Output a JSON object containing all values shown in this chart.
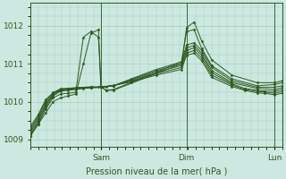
{
  "bg_color": "#cce8e0",
  "plot_bg_color": "#cce8e0",
  "grid_color": "#aaccbb",
  "line_color": "#2d5a1e",
  "marker_color": "#2d5a1e",
  "ylim": [
    1008.8,
    1012.6
  ],
  "yticks": [
    1009,
    1010,
    1011,
    1012
  ],
  "xlabel": "Pression niveau de la mer( hPa )",
  "xlabel_fontsize": 7,
  "tick_fontsize": 6.5,
  "figsize": [
    3.2,
    2.0
  ],
  "dpi": 100,
  "xtick_day_positions": [
    0.28,
    0.62,
    0.97
  ],
  "xtick_day_labels": [
    "Sam",
    "Dim",
    "Lun"
  ],
  "series": [
    {
      "x": [
        0.0,
        0.03,
        0.06,
        0.09,
        0.12,
        0.15,
        0.18,
        0.21,
        0.24,
        0.27,
        0.28,
        0.3,
        0.33,
        0.6,
        0.62,
        0.65,
        0.68,
        0.72,
        0.8,
        0.9,
        0.97,
        1.0
      ],
      "y": [
        1009.1,
        1009.4,
        1009.7,
        1010.0,
        1010.1,
        1010.15,
        1010.2,
        1011.0,
        1011.8,
        1011.9,
        1010.4,
        1010.3,
        1010.3,
        1011.0,
        1011.95,
        1012.1,
        1011.6,
        1011.1,
        1010.7,
        1010.5,
        1010.5,
        1010.55
      ]
    },
    {
      "x": [
        0.0,
        0.03,
        0.06,
        0.09,
        0.12,
        0.15,
        0.18,
        0.21,
        0.24,
        0.27,
        0.28,
        0.3,
        0.33,
        0.6,
        0.62,
        0.65,
        0.68,
        0.72,
        0.8,
        0.9,
        0.97,
        1.0
      ],
      "y": [
        1009.1,
        1009.4,
        1009.8,
        1010.1,
        1010.2,
        1010.22,
        1010.25,
        1011.7,
        1011.85,
        1011.7,
        1010.38,
        1010.3,
        1010.32,
        1011.05,
        1011.85,
        1011.9,
        1011.4,
        1010.95,
        1010.6,
        1010.42,
        1010.45,
        1010.5
      ]
    },
    {
      "x": [
        0.0,
        0.03,
        0.06,
        0.09,
        0.12,
        0.15,
        0.18,
        0.21,
        0.24,
        0.27,
        0.28,
        0.3,
        0.33,
        0.4,
        0.5,
        0.6,
        0.62,
        0.65,
        0.68,
        0.72,
        0.8,
        0.9,
        0.97,
        1.0
      ],
      "y": [
        1009.15,
        1009.45,
        1009.85,
        1010.15,
        1010.28,
        1010.3,
        1010.32,
        1010.35,
        1010.38,
        1010.38,
        1010.38,
        1010.4,
        1010.42,
        1010.6,
        1010.85,
        1011.05,
        1011.5,
        1011.55,
        1011.35,
        1010.9,
        1010.55,
        1010.38,
        1010.38,
        1010.42
      ]
    },
    {
      "x": [
        0.0,
        0.03,
        0.06,
        0.09,
        0.12,
        0.15,
        0.18,
        0.24,
        0.28,
        0.33,
        0.4,
        0.5,
        0.6,
        0.62,
        0.65,
        0.68,
        0.72,
        0.8,
        0.9,
        0.97,
        1.0
      ],
      "y": [
        1009.2,
        1009.5,
        1009.9,
        1010.18,
        1010.3,
        1010.32,
        1010.34,
        1010.36,
        1010.38,
        1010.42,
        1010.58,
        1010.82,
        1011.0,
        1011.42,
        1011.48,
        1011.28,
        1010.82,
        1010.5,
        1010.35,
        1010.32,
        1010.37
      ]
    },
    {
      "x": [
        0.0,
        0.03,
        0.06,
        0.09,
        0.12,
        0.15,
        0.18,
        0.24,
        0.28,
        0.33,
        0.4,
        0.5,
        0.6,
        0.62,
        0.65,
        0.68,
        0.72,
        0.8,
        0.85,
        0.9,
        0.93,
        0.97,
        1.0
      ],
      "y": [
        1009.25,
        1009.55,
        1009.95,
        1010.2,
        1010.32,
        1010.33,
        1010.35,
        1010.37,
        1010.38,
        1010.42,
        1010.56,
        1010.78,
        1010.95,
        1011.35,
        1011.42,
        1011.22,
        1010.76,
        1010.47,
        1010.35,
        1010.3,
        1010.28,
        1010.27,
        1010.32
      ]
    },
    {
      "x": [
        0.0,
        0.03,
        0.06,
        0.09,
        0.12,
        0.15,
        0.18,
        0.24,
        0.28,
        0.33,
        0.4,
        0.5,
        0.6,
        0.62,
        0.65,
        0.68,
        0.72,
        0.8,
        0.85,
        0.9,
        0.93,
        0.97,
        1.0
      ],
      "y": [
        1009.3,
        1009.6,
        1010.0,
        1010.22,
        1010.33,
        1010.34,
        1010.36,
        1010.38,
        1010.38,
        1010.42,
        1010.54,
        1010.74,
        1010.9,
        1011.28,
        1011.35,
        1011.15,
        1010.7,
        1010.44,
        1010.32,
        1010.27,
        1010.25,
        1010.22,
        1010.27
      ]
    },
    {
      "x": [
        0.0,
        0.03,
        0.06,
        0.09,
        0.12,
        0.15,
        0.18,
        0.24,
        0.28,
        0.33,
        0.4,
        0.5,
        0.6,
        0.62,
        0.65,
        0.68,
        0.72,
        0.8,
        0.85,
        0.9,
        0.93,
        0.97,
        1.0
      ],
      "y": [
        1009.35,
        1009.65,
        1010.05,
        1010.24,
        1010.34,
        1010.35,
        1010.37,
        1010.39,
        1010.39,
        1010.43,
        1010.52,
        1010.7,
        1010.85,
        1011.22,
        1011.28,
        1011.08,
        1010.64,
        1010.4,
        1010.3,
        1010.23,
        1010.22,
        1010.18,
        1010.22
      ]
    }
  ]
}
